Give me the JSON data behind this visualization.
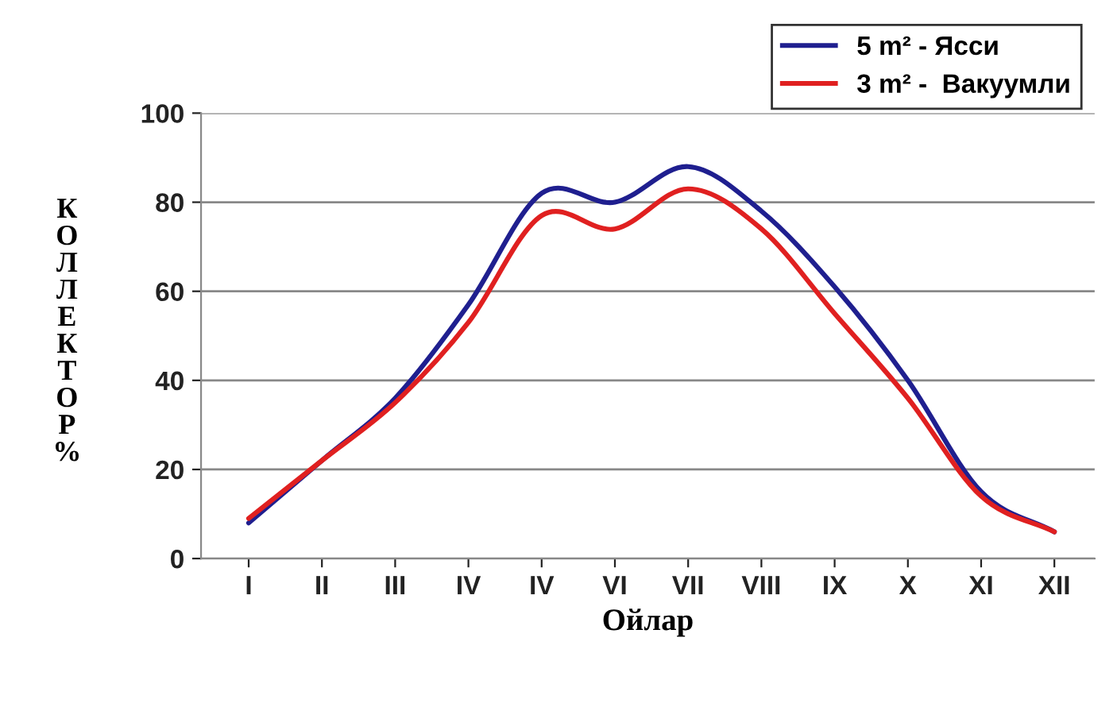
{
  "chart_data": {
    "type": "line",
    "xlabel": "Ойлар",
    "ylabel": "КОЛЛЕКТОР%",
    "categories": [
      "I",
      "II",
      "III",
      "IV",
      "IV",
      "VI",
      "VII",
      "VIII",
      "IX",
      "X",
      "XI",
      "XII"
    ],
    "series": [
      {
        "name": "5 m² - Ясси",
        "color": "#1f1f8f",
        "values": [
          8,
          22,
          36,
          57,
          82,
          80,
          88,
          78,
          61,
          40,
          15,
          6
        ]
      },
      {
        "name": "3 m² -  Вакуумли",
        "color": "#e02020",
        "values": [
          9,
          22,
          35,
          53,
          77,
          74,
          83,
          74,
          55,
          36,
          14,
          6
        ]
      }
    ],
    "ylim": [
      0,
      100
    ],
    "yticks": [
      0,
      20,
      40,
      60,
      80,
      100
    ],
    "grid": "y",
    "legend": "top right",
    "marker": "none",
    "line_style": "solid"
  }
}
